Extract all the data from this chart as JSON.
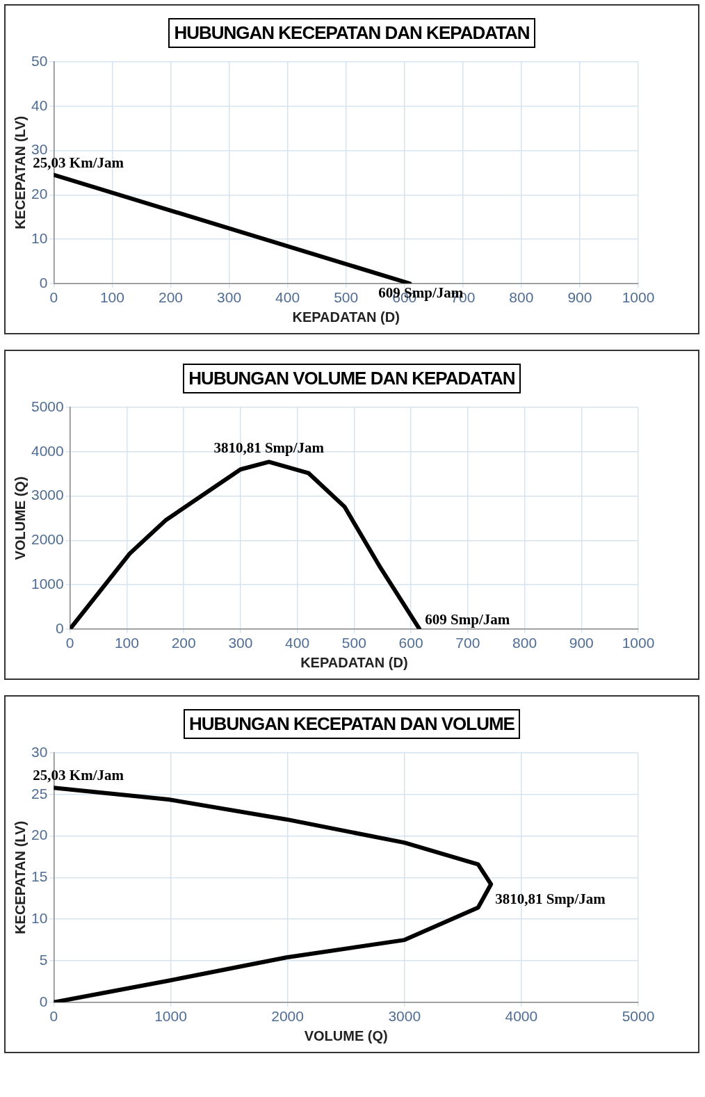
{
  "chart_data": [
    {
      "type": "line",
      "title": "HUBUNGAN KECEPATAN DAN KEPADATAN",
      "xlabel": "KEPADATAN (D)",
      "ylabel": "KECEPATAN (LV)",
      "xlim": [
        0,
        1000
      ],
      "xticks": [
        0,
        100,
        200,
        300,
        400,
        500,
        600,
        700,
        800,
        900,
        1000
      ],
      "ylim": [
        0,
        50
      ],
      "yticks": [
        0,
        10,
        20,
        30,
        40,
        50
      ],
      "grid": true,
      "legend": false,
      "marker": "none",
      "line_style": "solid",
      "series": [
        {
          "color": "#000000",
          "x": [
            0,
            609
          ],
          "values": [
            24.5,
            0
          ]
        }
      ],
      "annotations": [
        {
          "text": "25,03 Km/Jam",
          "x": 0,
          "y": 24.5
        },
        {
          "text": "609 Smp/Jam",
          "x": 609,
          "y": 0
        }
      ]
    },
    {
      "type": "line",
      "title": "HUBUNGAN VOLUME DAN KEPADATAN",
      "xlabel": "KEPADATAN (D)",
      "ylabel": "VOLUME (Q)",
      "xlim": [
        0,
        1000
      ],
      "xticks": [
        0,
        100,
        200,
        300,
        400,
        500,
        600,
        700,
        800,
        900,
        1000
      ],
      "ylim": [
        0,
        5000
      ],
      "yticks": [
        0,
        1000,
        2000,
        3000,
        4000,
        5000
      ],
      "grid": true,
      "legend": false,
      "marker": "none",
      "line_style": "solid",
      "series": [
        {
          "color": "#000000",
          "x": [
            0,
            105,
            168,
            231,
            300,
            350,
            420,
            483,
            546,
            615
          ],
          "values": [
            0,
            1700,
            2450,
            3000,
            3600,
            3770,
            3515,
            2760,
            1390,
            0
          ]
        }
      ],
      "annotations": [
        {
          "text": "3810,81 Smp/Jam",
          "x": 350,
          "y": 3770
        },
        {
          "text": "609 Smp/Jam",
          "x": 615,
          "y": 0
        }
      ]
    },
    {
      "type": "line",
      "title": "HUBUNGAN KECEPATAN DAN VOLUME",
      "xlabel": "VOLUME (Q)",
      "ylabel": "KECEPATAN (LV)",
      "xlim": [
        0,
        5000
      ],
      "xticks": [
        0,
        1000,
        2000,
        3000,
        4000,
        5000
      ],
      "ylim": [
        0,
        30
      ],
      "yticks": [
        0,
        5,
        10,
        15,
        20,
        25,
        30
      ],
      "grid": true,
      "legend": false,
      "marker": "none",
      "line_style": "solid",
      "series": [
        {
          "color": "#000000",
          "x": [
            0,
            980,
            1990,
            3000,
            3630,
            3740,
            3630,
            3000,
            1990,
            980,
            0
          ],
          "values": [
            25.8,
            24.4,
            22.0,
            19.2,
            16.6,
            14.2,
            11.4,
            7.5,
            5.4,
            2.6,
            0
          ]
        }
      ],
      "annotations": [
        {
          "text": "25,03 Km/Jam",
          "x": 0,
          "y": 25.8
        },
        {
          "text": "3810,81 Smp/Jam",
          "x": 3740,
          "y": 14.2
        }
      ]
    }
  ]
}
